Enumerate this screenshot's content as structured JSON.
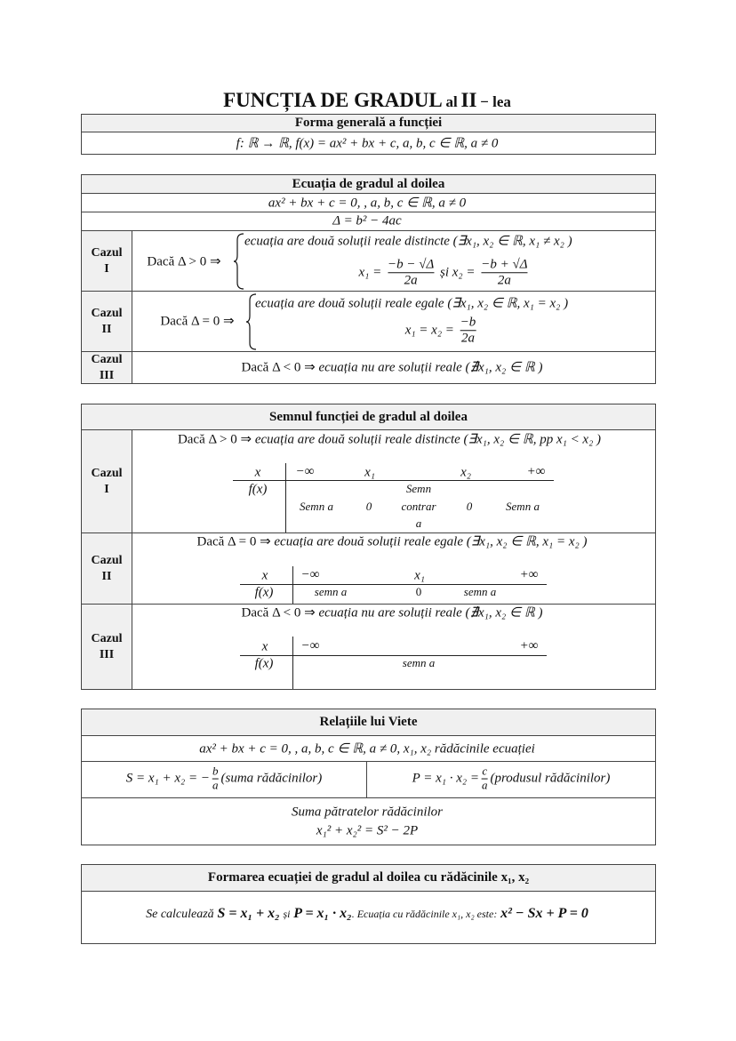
{
  "title": {
    "t1": "FUNCȚIA DE GRADUL",
    "t2": "al",
    "t3": "II",
    "t4": "− lea"
  },
  "forma": {
    "header": "Forma generală a funcției",
    "formula": "f: ℝ → ℝ, f(x) = ax² + bx + c, a, b, c ∈ ℝ, a ≠ 0"
  },
  "ecuatia": {
    "header": "Ecuația de gradul al doilea",
    "eq": "ax² + bx + c = 0, , a, b, c ∈ ℝ, a ≠ 0",
    "delta": "Δ = b² − 4ac",
    "cases": [
      {
        "label1": "Cazul",
        "label2": "I",
        "cond": "Dacă Δ > 0 ⇒",
        "line1": "ecuația are două soluții reale distincte (∃x₁, x₂ ∈ ℝ, x₁ ≠ x₂ )",
        "x1": "x₁ =",
        "num1": "−b − √Δ",
        "den1": "2a",
        "si": "și x₂ =",
        "num2": "−b + √Δ",
        "den2": "2a"
      },
      {
        "label1": "Cazul",
        "label2": "II",
        "cond": "Dacă Δ = 0 ⇒",
        "line1": "ecuația are două soluții reale egale (∃x₁, x₂ ∈ ℝ, x₁ = x₂ )",
        "x1": "x₁ =  x₂ =",
        "num1": "−b",
        "den1": "2a"
      },
      {
        "label1": "Cazul",
        "label2": "III",
        "cond": "Dacă Δ < 0 ⇒",
        "line1": "ecuația nu are soluții reale (∄x₁, x₂ ∈ ℝ )"
      }
    ]
  },
  "semnul": {
    "header": "Semnul funcției de gradul al doilea",
    "cases": [
      {
        "label1": "Cazul",
        "label2": "I",
        "cond": "Dacă Δ > 0 ⇒",
        "text": "ecuația are două soluții reale distincte (∃x₁, x₂ ∈ ℝ, pp x₁ < x₂ )",
        "x": "x",
        "fx": "f(x)",
        "minf": "−∞",
        "r1": "x₁",
        "r2": "x₂",
        "pinf": "+∞",
        "s1": "Semn a",
        "z1": "0",
        "s2a": "Semn",
        "s2b": "contrar",
        "s2c": "a",
        "z2": "0",
        "s3": "Semn a"
      },
      {
        "label1": "Cazul",
        "label2": "II",
        "cond": "Dacă Δ = 0 ⇒",
        "text": "ecuația are două soluții reale egale (∃x₁, x₂ ∈ ℝ, x₁ = x₂ )",
        "x": "x",
        "fx": "f(x)",
        "minf": "−∞",
        "r1": "x₁",
        "pinf": "+∞",
        "s1": "semn a",
        "z1": "0",
        "s2": "semn a"
      },
      {
        "label1": "Cazul",
        "label2": "III",
        "cond": "Dacă Δ < 0 ⇒",
        "text": "ecuația nu are soluții reale (∄x₁, x₂ ∈ ℝ )",
        "x": "x",
        "fx": "f(x)",
        "minf": "−∞",
        "pinf": "+∞",
        "s1": "semn a"
      }
    ]
  },
  "viete": {
    "header": "Relațiile lui Viete",
    "eq": "ax² + bx + c = 0, , a, b, c ∈ ℝ, a ≠ 0, x₁, x₂ rădăcinile ecuației",
    "s_left": "S = x₁ + x₂ = −",
    "s_num": "b",
    "s_den": "a",
    "s_right": "(suma rădăcinilor)",
    "p_left": "P = x₁ · x₂ =",
    "p_num": "c",
    "p_den": "a",
    "p_right": "(produsul rădăcinilor)",
    "sq_label": "Suma pătratelor rădăcinilor",
    "sq_formula": "x₁² + x₂² = S² − 2P"
  },
  "formare": {
    "header": "Formarea ecuației de gradul al doilea cu rădăcinile x₁, x₂",
    "p1": "Se calculează",
    "p2": "S = x₁ + x₂",
    "p3": "și",
    "p4": "P = x₁ · x₂",
    "p5": ". Ecuația cu rădăcinile x₁, x₂ este:",
    "p6": "x² − Sx + P = 0"
  }
}
